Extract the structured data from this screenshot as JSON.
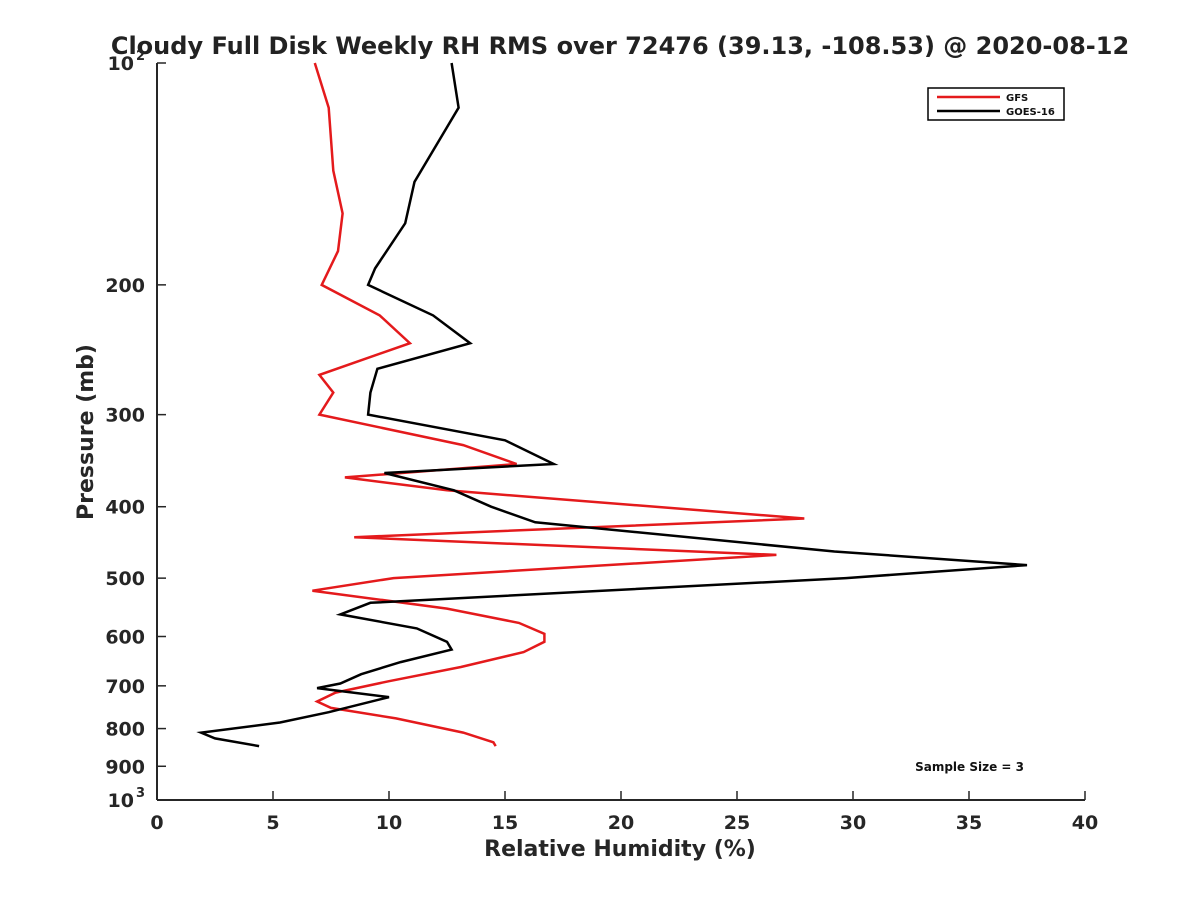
{
  "chart_data": {
    "type": "line",
    "title": "Cloudy Full Disk Weekly RH RMS over 72476 (39.13, -108.53) @ 2020-08-12",
    "xlabel": "Relative Humidity (%)",
    "ylabel": "Pressure (mb)",
    "xlim": [
      0,
      40
    ],
    "ylim": [
      100,
      1000
    ],
    "yscale": "log",
    "y_reversed": true,
    "grid": false,
    "legend_position": "top-right",
    "x_ticks": [
      0,
      5,
      10,
      15,
      20,
      25,
      30,
      35,
      40
    ],
    "y_ticks": [
      {
        "value": 100,
        "label": "10",
        "sup": "2"
      },
      {
        "value": 200,
        "label": "200"
      },
      {
        "value": 300,
        "label": "300"
      },
      {
        "value": 400,
        "label": "400"
      },
      {
        "value": 500,
        "label": "500"
      },
      {
        "value": 600,
        "label": "600"
      },
      {
        "value": 700,
        "label": "700"
      },
      {
        "value": 800,
        "label": "800"
      },
      {
        "value": 900,
        "label": "900"
      },
      {
        "value": 1000,
        "label": "10",
        "sup": "3"
      }
    ],
    "series": [
      {
        "name": "GFS",
        "color": "#e41a1c",
        "points": [
          [
            6.8,
            100
          ],
          [
            7.4,
            115
          ],
          [
            7.6,
            140
          ],
          [
            8.0,
            160
          ],
          [
            7.8,
            180
          ],
          [
            7.1,
            200
          ],
          [
            9.6,
            220
          ],
          [
            10.9,
            240
          ],
          [
            7.0,
            265
          ],
          [
            7.6,
            280
          ],
          [
            7.0,
            300
          ],
          [
            13.2,
            330
          ],
          [
            15.5,
            350
          ],
          [
            8.1,
            365
          ],
          [
            12.5,
            380
          ],
          [
            27.9,
            415
          ],
          [
            8.5,
            440
          ],
          [
            26.7,
            465
          ],
          [
            10.2,
            500
          ],
          [
            6.7,
            520
          ],
          [
            12.5,
            550
          ],
          [
            15.6,
            575
          ],
          [
            16.7,
            595
          ],
          [
            16.7,
            610
          ],
          [
            15.8,
            630
          ],
          [
            13.1,
            660
          ],
          [
            10.0,
            690
          ],
          [
            7.7,
            715
          ],
          [
            6.9,
            735
          ],
          [
            7.5,
            750
          ],
          [
            10.3,
            775
          ],
          [
            13.2,
            810
          ],
          [
            14.5,
            835
          ],
          [
            14.6,
            845
          ]
        ]
      },
      {
        "name": "GOES-16",
        "color": "#000000",
        "points": [
          [
            12.7,
            100
          ],
          [
            13.0,
            115
          ],
          [
            11.1,
            145
          ],
          [
            10.7,
            165
          ],
          [
            9.4,
            190
          ],
          [
            9.1,
            200
          ],
          [
            11.9,
            220
          ],
          [
            13.5,
            240
          ],
          [
            9.5,
            260
          ],
          [
            9.2,
            280
          ],
          [
            9.1,
            300
          ],
          [
            15.0,
            325
          ],
          [
            17.1,
            350
          ],
          [
            9.8,
            360
          ],
          [
            12.8,
            380
          ],
          [
            14.4,
            400
          ],
          [
            16.3,
            420
          ],
          [
            29.2,
            460
          ],
          [
            37.5,
            480
          ],
          [
            29.7,
            500
          ],
          [
            9.2,
            540
          ],
          [
            7.9,
            560
          ],
          [
            11.2,
            585
          ],
          [
            12.5,
            610
          ],
          [
            12.7,
            625
          ],
          [
            10.5,
            650
          ],
          [
            8.8,
            675
          ],
          [
            7.9,
            695
          ],
          [
            6.9,
            705
          ],
          [
            10.0,
            725
          ],
          [
            7.4,
            760
          ],
          [
            5.3,
            785
          ],
          [
            1.9,
            810
          ],
          [
            2.5,
            825
          ],
          [
            4.4,
            845
          ]
        ]
      }
    ],
    "annotations": [
      {
        "text": "Sample Size = 3",
        "anchor": "bottom-right"
      }
    ]
  }
}
